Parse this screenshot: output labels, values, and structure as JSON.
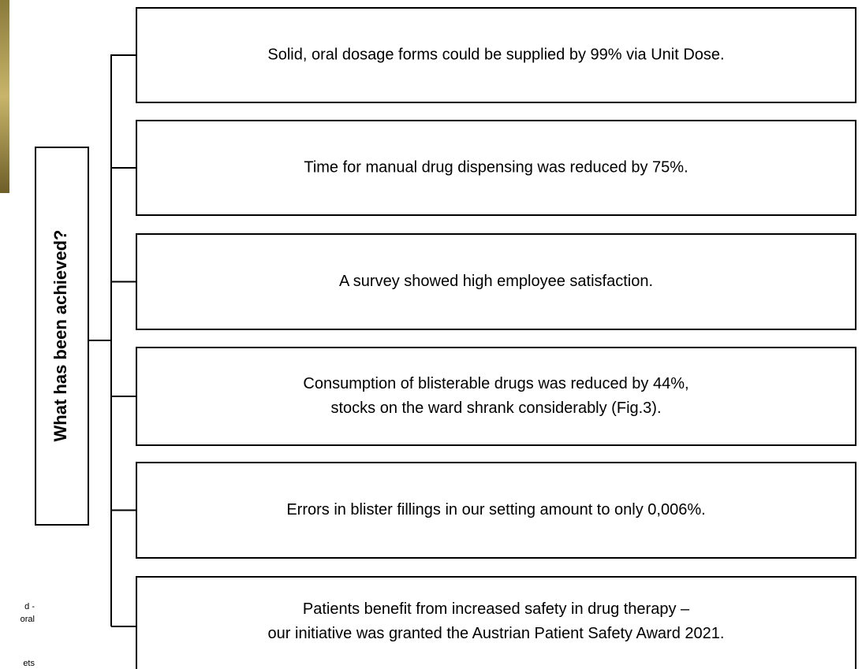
{
  "title": "What has been achieved?",
  "nodes": [
    {
      "lines": [
        "Solid, oral dosage forms could be supplied by 99% via Unit Dose."
      ]
    },
    {
      "lines": [
        "Time for manual drug dispensing was reduced by 75%."
      ]
    },
    {
      "lines": [
        "A survey showed high employee satisfaction."
      ]
    },
    {
      "lines": [
        "Consumption of blisterable drugs was reduced by 44%,",
        "stocks on the ward shrank considerably (Fig.3)."
      ]
    },
    {
      "lines": [
        "Errors in blister fillings in our setting amount to only 0,006%."
      ]
    },
    {
      "lines": [
        "Patients benefit from increased safety in drug therapy –",
        "our initiative was granted the Austrian Patient Safety Award 2021."
      ]
    }
  ],
  "fragments": [
    "d -",
    "oral",
    "ets"
  ]
}
